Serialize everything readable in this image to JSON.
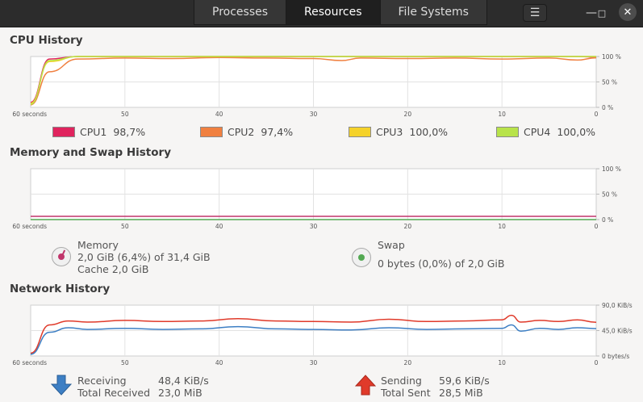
{
  "header": {
    "tabs": [
      {
        "label": "Processes",
        "active": false
      },
      {
        "label": "Resources",
        "active": true
      },
      {
        "label": "File Systems",
        "active": false
      }
    ],
    "menu_icon": "hamburger-icon",
    "minimize_icon": "minimize-icon",
    "maximize_icon": "maximize-icon",
    "close_icon": "close-icon"
  },
  "cpu": {
    "title": "CPU History",
    "y_ticks": [
      "100 %",
      "50 %",
      "0 %"
    ],
    "x_ticks": [
      "60 seconds",
      "50",
      "40",
      "30",
      "20",
      "10",
      "0"
    ],
    "legend": [
      {
        "name": "CPU1",
        "value": "98,7%",
        "color": "#e0245e"
      },
      {
        "name": "CPU2",
        "value": "97,4%",
        "color": "#f08040"
      },
      {
        "name": "CPU3",
        "value": "100,0%",
        "color": "#f5d22a"
      },
      {
        "name": "CPU4",
        "value": "100,0%",
        "color": "#b8e34a"
      }
    ]
  },
  "memory": {
    "title": "Memory and Swap History",
    "y_ticks": [
      "100 %",
      "50 %",
      "0 %"
    ],
    "x_ticks": [
      "60 seconds",
      "50",
      "40",
      "30",
      "20",
      "10",
      "0"
    ],
    "mem_label": "Memory",
    "mem_usage": "2,0 GiB (6,4%) of 31,4 GiB",
    "mem_cache": "Cache 2,0 GiB",
    "swap_label": "Swap",
    "swap_usage": "0 bytes (0,0%) of 2,0 GiB",
    "mem_color": "#c0356b",
    "swap_color": "#52a852"
  },
  "network": {
    "title": "Network History",
    "y_ticks": [
      "90,0 KiB/s",
      "45,0 KiB/s",
      "0 bytes/s"
    ],
    "x_ticks": [
      "60 seconds",
      "50",
      "40",
      "30",
      "20",
      "10",
      "0"
    ],
    "receiving_label": "Receiving",
    "receiving_value": "48,4 KiB/s",
    "total_received_label": "Total Received",
    "total_received_value": "23,0 MiB",
    "sending_label": "Sending",
    "sending_value": "59,6 KiB/s",
    "total_sent_label": "Total Sent",
    "total_sent_value": "28,5 MiB",
    "receiving_color": "#3d7fc4",
    "sending_color": "#e03a2a"
  },
  "chart_data": [
    {
      "type": "line",
      "title": "CPU History",
      "xlabel": "seconds",
      "ylabel": "%",
      "x": [
        60,
        58,
        55,
        50,
        45,
        40,
        35,
        30,
        27,
        25,
        20,
        15,
        10,
        5,
        2,
        0
      ],
      "ylim": [
        0,
        100
      ],
      "series": [
        {
          "name": "CPU1",
          "values": [
            10,
            95,
            100,
            100,
            100,
            100,
            100,
            100,
            100,
            100,
            100,
            100,
            100,
            100,
            100,
            98.7
          ]
        },
        {
          "name": "CPU2",
          "values": [
            5,
            70,
            95,
            97,
            96,
            98,
            97,
            96,
            92,
            97,
            96,
            97,
            95,
            97,
            93,
            97.4
          ]
        },
        {
          "name": "CPU3",
          "values": [
            8,
            90,
            100,
            100,
            100,
            100,
            100,
            100,
            100,
            100,
            100,
            100,
            100,
            100,
            100,
            100
          ]
        },
        {
          "name": "CPU4",
          "values": [
            6,
            92,
            100,
            100,
            100,
            100,
            100,
            100,
            100,
            100,
            100,
            100,
            100,
            100,
            100,
            100
          ]
        }
      ]
    },
    {
      "type": "line",
      "title": "Memory and Swap History",
      "x": [
        60,
        0
      ],
      "ylim": [
        0,
        100
      ],
      "series": [
        {
          "name": "Memory",
          "values": [
            6.4,
            6.4
          ]
        },
        {
          "name": "Swap",
          "values": [
            0,
            0
          ]
        }
      ]
    },
    {
      "type": "line",
      "title": "Network History",
      "x": [
        60,
        58,
        56,
        54,
        50,
        46,
        42,
        38,
        34,
        30,
        26,
        22,
        18,
        14,
        10,
        9,
        8,
        6,
        4,
        2,
        0
      ],
      "ylim": [
        0,
        90
      ],
      "series": [
        {
          "name": "Sending",
          "values": [
            5,
            55,
            62,
            60,
            63,
            61,
            62,
            66,
            62,
            61,
            60,
            65,
            61,
            62,
            64,
            72,
            60,
            63,
            61,
            64,
            59.6
          ]
        },
        {
          "name": "Receiving",
          "values": [
            3,
            42,
            50,
            47,
            49,
            47,
            48,
            52,
            48,
            47,
            46,
            50,
            47,
            48,
            49,
            55,
            44,
            49,
            47,
            50,
            48.4
          ]
        }
      ]
    }
  ]
}
